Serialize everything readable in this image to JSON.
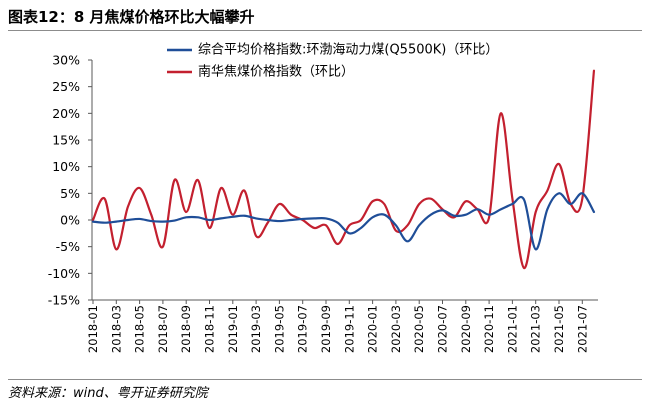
{
  "source": "资料来源：wind、粤开证券研究院",
  "chart_data": {
    "type": "line",
    "title": "图表12：8 月焦煤价格环比大幅攀升",
    "x": [
      "2018-01",
      "2018-02",
      "2018-03",
      "2018-04",
      "2018-05",
      "2018-06",
      "2018-07",
      "2018-08",
      "2018-09",
      "2018-10",
      "2018-11",
      "2018-12",
      "2019-01",
      "2019-02",
      "2019-03",
      "2019-04",
      "2019-05",
      "2019-06",
      "2019-07",
      "2019-08",
      "2019-09",
      "2019-10",
      "2019-11",
      "2019-12",
      "2020-01",
      "2020-02",
      "2020-03",
      "2020-04",
      "2020-05",
      "2020-06",
      "2020-07",
      "2020-08",
      "2020-09",
      "2020-10",
      "2020-11",
      "2020-12",
      "2021-01",
      "2021-02",
      "2021-03",
      "2021-04",
      "2021-05",
      "2021-06",
      "2021-07",
      "2021-08"
    ],
    "y_tick_labels": [
      "30%",
      "25%",
      "20%",
      "15%",
      "10%",
      "5%",
      "0%",
      "-5%",
      "-10%",
      "-15%"
    ],
    "ylim": [
      -15,
      30
    ],
    "grid": false,
    "smoothed": true,
    "legend_position": "top",
    "series": [
      {
        "name": "综合平均价格指数:环渤海动力煤(Q5500K)（环比）",
        "color": "#1f4e98",
        "values": [
          -0.3,
          -0.5,
          -0.3,
          0.0,
          0.2,
          -0.2,
          -0.3,
          -0.1,
          0.5,
          0.5,
          0.0,
          0.3,
          0.6,
          0.8,
          0.3,
          0.0,
          -0.2,
          0.0,
          0.2,
          0.3,
          0.3,
          -0.5,
          -2.5,
          -1.5,
          0.5,
          1.0,
          -1.0,
          -4.0,
          -1.0,
          1.0,
          1.8,
          0.8,
          1.0,
          2.0,
          1.0,
          2.0,
          3.0,
          3.8,
          -5.5,
          2.0,
          5.0,
          3.0,
          5.0,
          1.5
        ]
      },
      {
        "name": "南华焦煤价格指数（环比）",
        "color": "#c3202f",
        "values": [
          0.0,
          4.0,
          -5.5,
          2.5,
          6.0,
          1.0,
          -5.0,
          7.5,
          1.5,
          7.5,
          -1.5,
          6.0,
          1.0,
          5.5,
          -3.0,
          -0.5,
          3.0,
          1.0,
          0.0,
          -1.5,
          -1.0,
          -4.5,
          -1.0,
          0.0,
          3.5,
          3.0,
          -2.0,
          -1.0,
          3.0,
          4.0,
          2.0,
          0.5,
          3.5,
          2.0,
          0.5,
          20.0,
          4.0,
          -9.0,
          1.5,
          5.5,
          10.5,
          3.0,
          4.0,
          28.0
        ]
      }
    ]
  }
}
